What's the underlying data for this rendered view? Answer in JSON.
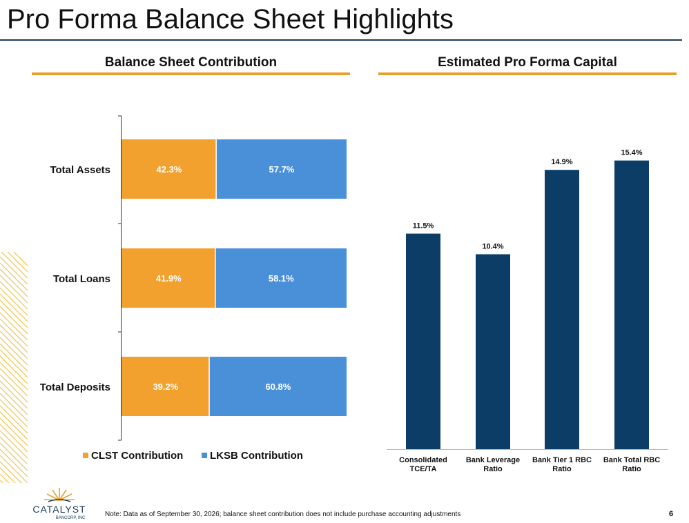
{
  "page": {
    "title": "Pro Forma Balance Sheet Highlights",
    "footnote": "Note: Data as of September 30, 2026; balance sheet contribution does not include purchase accounting adjustments",
    "page_number": "6",
    "logo_text": "CATALYST",
    "logo_subtext": "BANCORP, INC"
  },
  "colors": {
    "accent": "#e5a130",
    "title_rule": "#1b3a5c",
    "clst": "#f2a02e",
    "lksb": "#4a90d9",
    "capital_bar": "#0c3d66"
  },
  "chart_data": [
    {
      "type": "bar",
      "orientation": "horizontal",
      "stacked": true,
      "title": "Balance Sheet Contribution",
      "categories": [
        "Total Assets",
        "Total Loans",
        "Total Deposits"
      ],
      "series": [
        {
          "name": "CLST Contribution",
          "values": [
            42.3,
            41.9,
            39.2
          ]
        },
        {
          "name": "LKSB Contribution",
          "values": [
            57.7,
            58.1,
            60.8
          ]
        }
      ],
      "value_labels": [
        [
          "42.3%",
          "41.9%",
          "39.2%"
        ],
        [
          "57.7%",
          "58.1%",
          "60.8%"
        ]
      ],
      "xlim": [
        0,
        100
      ],
      "legend": "bottom",
      "grid": false
    },
    {
      "type": "bar",
      "orientation": "vertical",
      "title": "Estimated Pro Forma Capital",
      "categories": [
        [
          "Consolidated",
          "TCE/TA"
        ],
        [
          "Bank Leverage",
          "Ratio"
        ],
        [
          "Bank Tier 1 RBC",
          "Ratio"
        ],
        [
          "Bank Total RBC",
          "Ratio"
        ]
      ],
      "values": [
        11.5,
        10.4,
        14.9,
        15.4
      ],
      "value_labels": [
        "11.5%",
        "10.4%",
        "14.9%",
        "15.4%"
      ],
      "ylim": [
        0,
        18
      ],
      "grid": false
    }
  ]
}
